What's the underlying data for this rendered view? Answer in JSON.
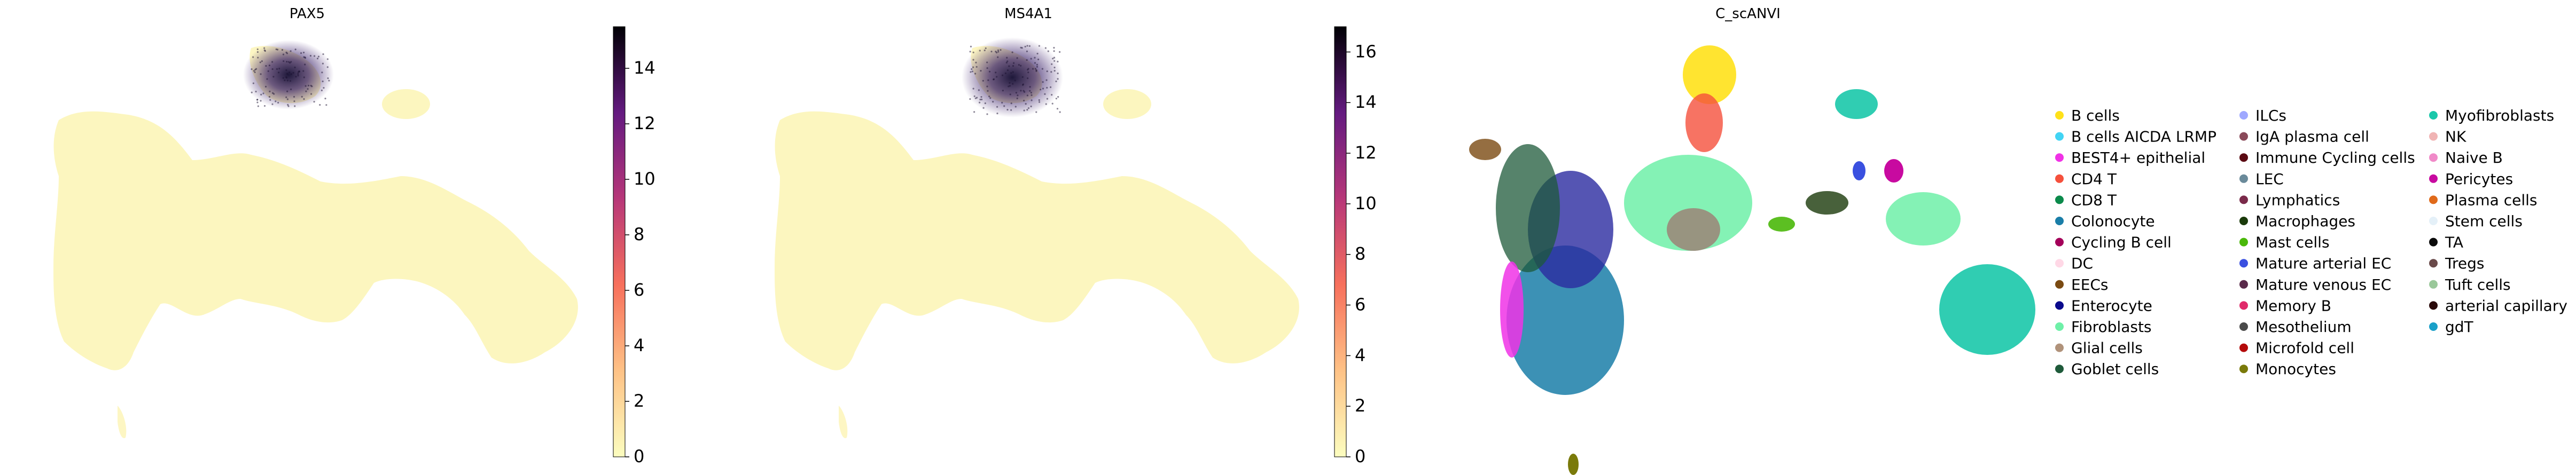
{
  "colors": {
    "background": "#ffffff",
    "cold_cells": "#fcf4b4",
    "hot_cells": "#120c32",
    "axis": "#000000"
  },
  "chart_data": [
    {
      "type": "scatter",
      "panel": "umap-embedding",
      "title": "PAX5",
      "colormap": "magma_r",
      "colorbar": {
        "range": [
          0,
          15.5
        ],
        "ticks": [
          0,
          2,
          4,
          6,
          8,
          10,
          12,
          14
        ]
      },
      "note": "single-cell UMAP colored by PAX5 expression; high expression concentrated in the B-cell cluster at top"
    },
    {
      "type": "scatter",
      "panel": "umap-embedding",
      "title": "MS4A1",
      "colormap": "magma_r",
      "colorbar": {
        "range": [
          0,
          17
        ],
        "ticks": [
          0,
          2,
          4,
          6,
          8,
          10,
          12,
          14,
          16
        ]
      },
      "note": "single-cell UMAP colored by MS4A1 expression; high expression concentrated in the B-cell cluster at top"
    },
    {
      "type": "scatter",
      "panel": "umap-embedding",
      "title": "C_scANVI",
      "legend_position": "right",
      "categories": [
        {
          "label": "B cells",
          "color": "#ffe119"
        },
        {
          "label": "B cells AICDA LRMP",
          "color": "#42d4f4"
        },
        {
          "label": "BEST4+ epithelial",
          "color": "#f032e6"
        },
        {
          "label": "CD4 T",
          "color": "#f5503c"
        },
        {
          "label": "CD8 T",
          "color": "#0b8a4b"
        },
        {
          "label": "Colonocyte",
          "color": "#1a7ea8"
        },
        {
          "label": "Cycling B cell",
          "color": "#a4005a"
        },
        {
          "label": "DC",
          "color": "#ffd8e6"
        },
        {
          "label": "EECs",
          "color": "#7a4a12"
        },
        {
          "label": "Enterocyte",
          "color": "#0a0a8c"
        },
        {
          "label": "Fibroblasts",
          "color": "#6ef0a8"
        },
        {
          "label": "Glial cells",
          "color": "#b0927a"
        },
        {
          "label": "Goblet cells",
          "color": "#1e5a3a"
        },
        {
          "label": "ILCs",
          "color": "#9fa8ff"
        },
        {
          "label": "IgA plasma cell",
          "color": "#8a4a5a"
        },
        {
          "label": "Immune Cycling cells",
          "color": "#5a0a12"
        },
        {
          "label": "LEC",
          "color": "#6a8a9a"
        },
        {
          "label": "Lymphatics",
          "color": "#7a2a4a"
        },
        {
          "label": "Macrophages",
          "color": "#1a3a0a"
        },
        {
          "label": "Mast cells",
          "color": "#4ab80a"
        },
        {
          "label": "Mature arterial EC",
          "color": "#3a50e0"
        },
        {
          "label": "Mature venous EC",
          "color": "#5a2a4a"
        },
        {
          "label": "Memory B",
          "color": "#e02a6a"
        },
        {
          "label": "Mesothelium",
          "color": "#4a4a4a"
        },
        {
          "label": "Microfold cell",
          "color": "#b40a0a"
        },
        {
          "label": "Monocytes",
          "color": "#7a7a0a"
        },
        {
          "label": "Myofibroblasts",
          "color": "#1ac8aa"
        },
        {
          "label": "NK",
          "color": "#f0b4b4"
        },
        {
          "label": "Naive B",
          "color": "#f08ac8"
        },
        {
          "label": "Pericytes",
          "color": "#c80aa0"
        },
        {
          "label": "Plasma cells",
          "color": "#e06a1a"
        },
        {
          "label": "Stem cells",
          "color": "#e4f0f8"
        },
        {
          "label": "TA",
          "color": "#0a0a0a"
        },
        {
          "label": "Tregs",
          "color": "#6a4a4a"
        },
        {
          "label": "Tuft cells",
          "color": "#9ac89a"
        },
        {
          "label": "arterial capillary",
          "color": "#2a0a0a"
        },
        {
          "label": "gdT",
          "color": "#1aa0c8"
        }
      ]
    }
  ]
}
